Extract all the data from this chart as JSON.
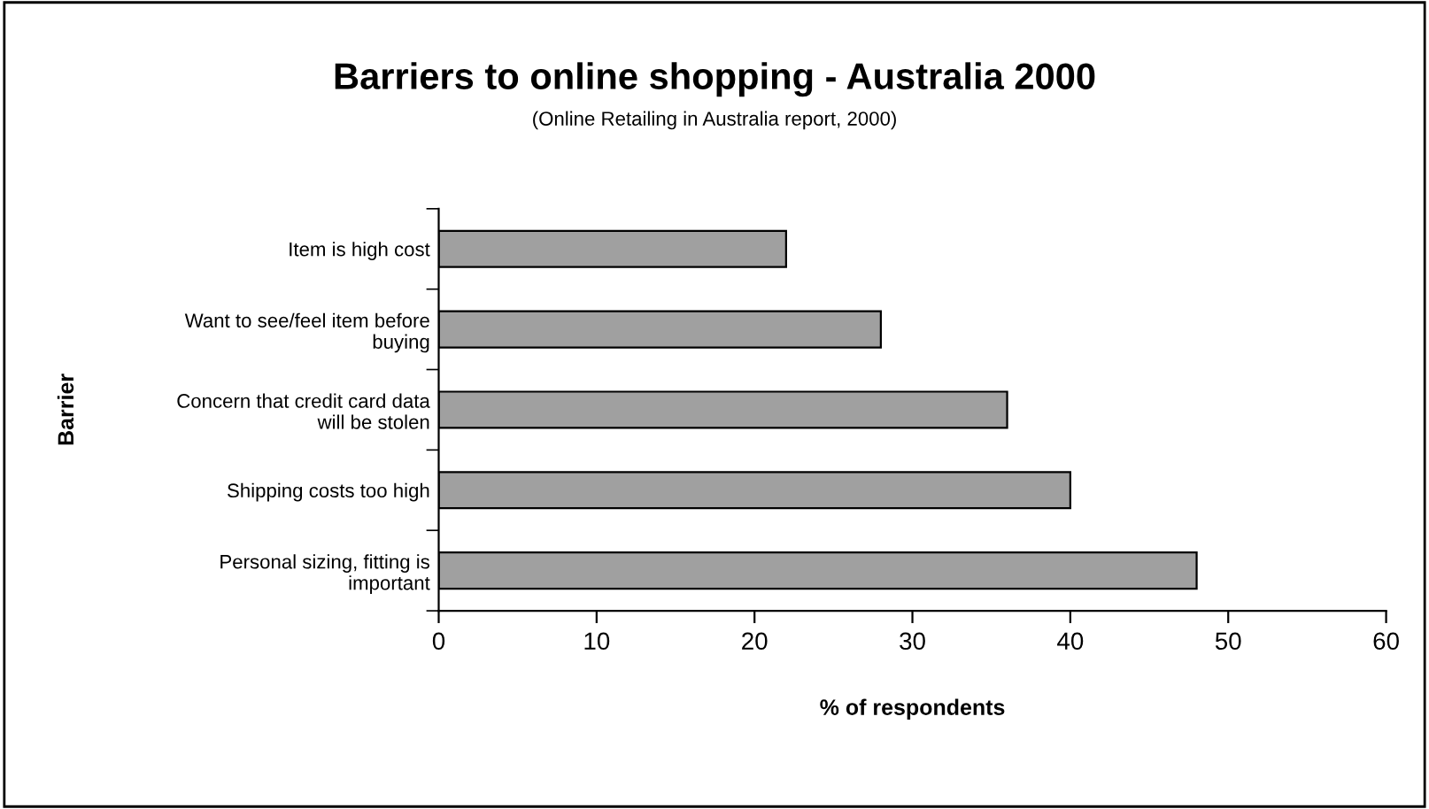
{
  "chart_data": {
    "type": "bar",
    "orientation": "horizontal",
    "title": "Barriers to online shopping - Australia 2000",
    "subtitle": "(Online Retailing in Australia report, 2000)",
    "xlabel": "% of respondents",
    "ylabel": "Barrier",
    "categories": [
      "Item is high cost",
      "Want to see/feel item before\nbuying",
      "Concern that credit card data\nwill be stolen",
      "Shipping costs too high",
      "Personal sizing, fitting is\nimportant"
    ],
    "values": [
      22,
      28,
      36,
      40,
      48
    ],
    "color": "#a0a0a0",
    "xlim": [
      0,
      60
    ],
    "xticks": [
      0,
      10,
      20,
      30,
      40,
      50,
      60
    ],
    "grid": false,
    "legend": false
  }
}
